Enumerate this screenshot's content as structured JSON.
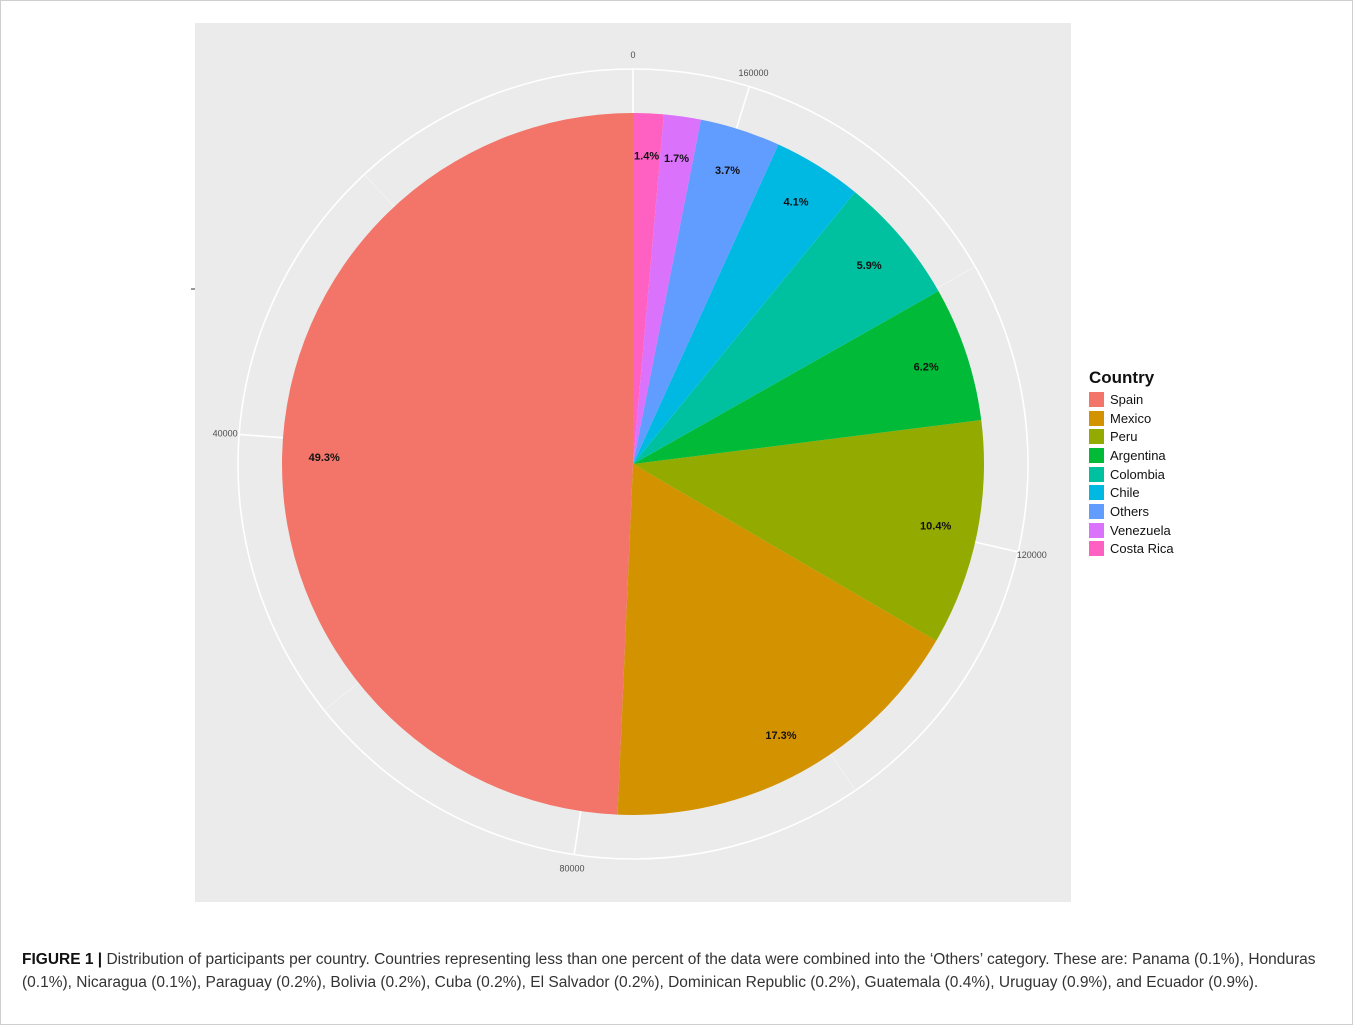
{
  "chart_data": {
    "type": "pie",
    "legend_title": "Country",
    "legend_position": "right",
    "start_angle_deg": 0,
    "direction": "clockwise",
    "radial_axis": {
      "label": "",
      "ticks": [
        "0",
        "40000",
        "80000",
        "120000",
        "160000"
      ],
      "tick_values": [
        0,
        40000,
        80000,
        120000,
        160000
      ],
      "max": 168000
    },
    "slices": [
      {
        "name": "Spain",
        "value": 49.3,
        "label": "49.3%",
        "color": "#F37569"
      },
      {
        "name": "Mexico",
        "value": 17.3,
        "label": "17.3%",
        "color": "#D39200"
      },
      {
        "name": "Peru",
        "value": 10.4,
        "label": "10.4%",
        "color": "#93AA00"
      },
      {
        "name": "Argentina",
        "value": 6.2,
        "label": "6.2%",
        "color": "#00BA38"
      },
      {
        "name": "Colombia",
        "value": 5.9,
        "label": "5.9%",
        "color": "#00C19F"
      },
      {
        "name": "Chile",
        "value": 4.1,
        "label": "4.1%",
        "color": "#00B9E3"
      },
      {
        "name": "Others",
        "value": 3.7,
        "label": "3.7%",
        "color": "#619CFF"
      },
      {
        "name": "Venezuela",
        "value": 1.7,
        "label": "1.7%",
        "color": "#DB72FB"
      },
      {
        "name": "Costa Rica",
        "value": 1.4,
        "label": "1.4%",
        "color": "#FF61C3"
      }
    ],
    "panel_background": "#EBEBEB",
    "grid": true
  },
  "caption": {
    "label": "FIGURE 1 |",
    "text": " Distribution of participants per country. Countries representing less than one percent of the data were combined into the ‘Others’ category. These are: Panama (0.1%), Honduras (0.1%), Nicaragua (0.1%), Paraguay (0.2%), Bolivia (0.2%), Cuba (0.2%), El Salvador (0.2%), Dominican Republic (0.2%), Guatemala (0.4%), Uruguay (0.9%), and Ecuador (0.9%)."
  }
}
